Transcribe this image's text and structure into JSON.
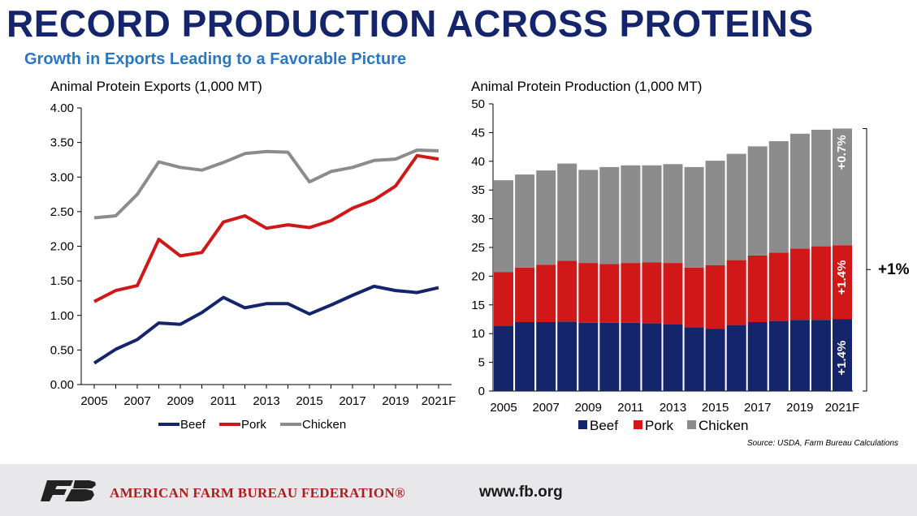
{
  "header": {
    "title": "RECORD PRODUCTION ACROSS PROTEINS",
    "subtitle": "Growth in Exports Leading to a Favorable Picture"
  },
  "chart_data": [
    {
      "type": "line",
      "title": "Animal Protein Exports (1,000 MT)",
      "x": [
        "2005",
        "2006",
        "2007",
        "2008",
        "2009",
        "2010",
        "2011",
        "2012",
        "2013",
        "2014",
        "2015",
        "2016",
        "2017",
        "2018",
        "2019",
        "2020",
        "2021F"
      ],
      "x_tick_labels": [
        "2005",
        "2007",
        "2009",
        "2011",
        "2013",
        "2015",
        "2017",
        "2019",
        "2021F"
      ],
      "ylim": [
        0,
        4
      ],
      "y_ticks": [
        "0.00",
        "0.50",
        "1.00",
        "1.50",
        "2.00",
        "2.50",
        "3.00",
        "3.50",
        "4.00"
      ],
      "legend": "bottom",
      "series": [
        {
          "name": "Beef",
          "color": "#14256b",
          "values": [
            0.31,
            0.51,
            0.65,
            0.89,
            0.87,
            1.04,
            1.26,
            1.11,
            1.17,
            1.17,
            1.02,
            1.15,
            1.29,
            1.42,
            1.36,
            1.33,
            1.4
          ]
        },
        {
          "name": "Pork",
          "color": "#d01818",
          "values": [
            1.2,
            1.36,
            1.43,
            2.1,
            1.86,
            1.91,
            2.35,
            2.44,
            2.26,
            2.31,
            2.27,
            2.37,
            2.55,
            2.67,
            2.87,
            3.31,
            3.26
          ]
        },
        {
          "name": "Chicken",
          "color": "#8c8c8c",
          "values": [
            2.41,
            2.44,
            2.75,
            3.22,
            3.14,
            3.1,
            3.21,
            3.34,
            3.37,
            3.36,
            2.93,
            3.08,
            3.14,
            3.24,
            3.26,
            3.39,
            3.38
          ]
        }
      ]
    },
    {
      "type": "bar",
      "stacked": true,
      "title": "Animal Protein Production (1,000 MT)",
      "categories": [
        "2005",
        "2006",
        "2007",
        "2008",
        "2009",
        "2010",
        "2011",
        "2012",
        "2013",
        "2014",
        "2015",
        "2016",
        "2017",
        "2018",
        "2019",
        "2020",
        "2021F"
      ],
      "x_tick_labels": [
        "2005",
        "2007",
        "2009",
        "2011",
        "2013",
        "2015",
        "2017",
        "2019",
        "2021F"
      ],
      "ylim": [
        0,
        50
      ],
      "y_ticks": [
        "0",
        "5",
        "10",
        "15",
        "20",
        "25",
        "30",
        "35",
        "40",
        "45",
        "50"
      ],
      "legend": "bottom",
      "series": [
        {
          "name": "Beef",
          "color": "#14256b",
          "values": [
            11.3,
            12.0,
            12.0,
            12.1,
            11.9,
            11.9,
            11.9,
            11.8,
            11.7,
            11.1,
            10.8,
            11.5,
            12.0,
            12.2,
            12.4,
            12.4,
            12.5
          ]
        },
        {
          "name": "Pork",
          "color": "#d01818",
          "values": [
            9.4,
            9.5,
            10.0,
            10.6,
            10.4,
            10.2,
            10.4,
            10.6,
            10.6,
            10.4,
            11.1,
            11.3,
            11.6,
            11.9,
            12.4,
            12.8,
            12.9
          ]
        },
        {
          "name": "Chicken",
          "color": "#8c8c8c",
          "values": [
            16.0,
            16.2,
            16.4,
            16.9,
            16.2,
            16.9,
            17.0,
            16.9,
            17.2,
            17.5,
            18.2,
            18.5,
            19.0,
            19.4,
            20.0,
            20.3,
            20.3
          ]
        }
      ],
      "annotations": {
        "beef_growth": "+1.4%",
        "pork_growth": "+1.4%",
        "chicken_growth": "+0.7%",
        "total_growth": "+1%"
      },
      "source": "Source: USDA, Farm Bureau Calculations"
    }
  ],
  "footer": {
    "org_name": "AMERICAN FARM BUREAU FEDERATION®",
    "url": "www.fb.org",
    "logo_icon": "fb-logo-icon"
  }
}
